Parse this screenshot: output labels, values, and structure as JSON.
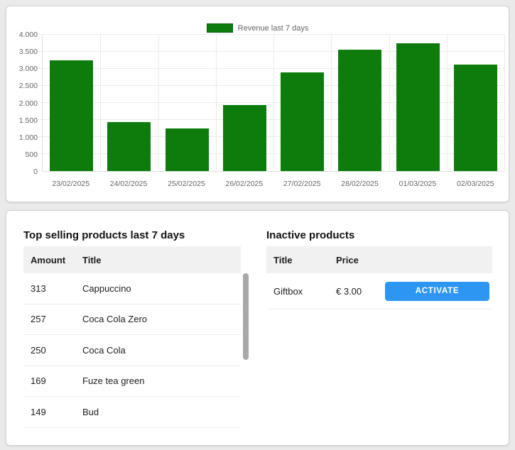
{
  "chart_data": {
    "type": "bar",
    "legend": "Revenue last 7 days",
    "legend_position": "top-center",
    "categories": [
      "23/02/2025",
      "24/02/2025",
      "25/02/2025",
      "26/02/2025",
      "27/02/2025",
      "28/02/2025",
      "01/03/2025",
      "02/03/2025"
    ],
    "values": [
      3250,
      1430,
      1250,
      1940,
      2890,
      3560,
      3760,
      3120
    ],
    "ylim": [
      0,
      4000
    ],
    "ytick_step": 500,
    "ytick_labels": [
      "0",
      "500",
      "1.000",
      "1.500",
      "2.000",
      "2.500",
      "3.000",
      "3.500",
      "4.000"
    ],
    "bar_color": "#0d7c0d",
    "grid": true,
    "xlabel": "",
    "ylabel": ""
  },
  "products": {
    "top_selling": {
      "heading": "Top selling products last 7 days",
      "columns": [
        "Amount",
        "Title"
      ],
      "rows": [
        {
          "amount": "313",
          "title": "Cappuccino"
        },
        {
          "amount": "257",
          "title": "Coca Cola Zero"
        },
        {
          "amount": "250",
          "title": "Coca Cola"
        },
        {
          "amount": "169",
          "title": "Fuze tea green"
        },
        {
          "amount": "149",
          "title": "Bud"
        }
      ]
    },
    "inactive": {
      "heading": "Inactive products",
      "columns": [
        "Title",
        "Price"
      ],
      "rows": [
        {
          "title": "Giftbox",
          "price": "€ 3.00",
          "action_label": "ACTIVATE"
        }
      ]
    }
  },
  "colors": {
    "bar_green": "#0d7c0d",
    "button_blue": "#2d96f2",
    "page_background": "#eaeaea"
  }
}
